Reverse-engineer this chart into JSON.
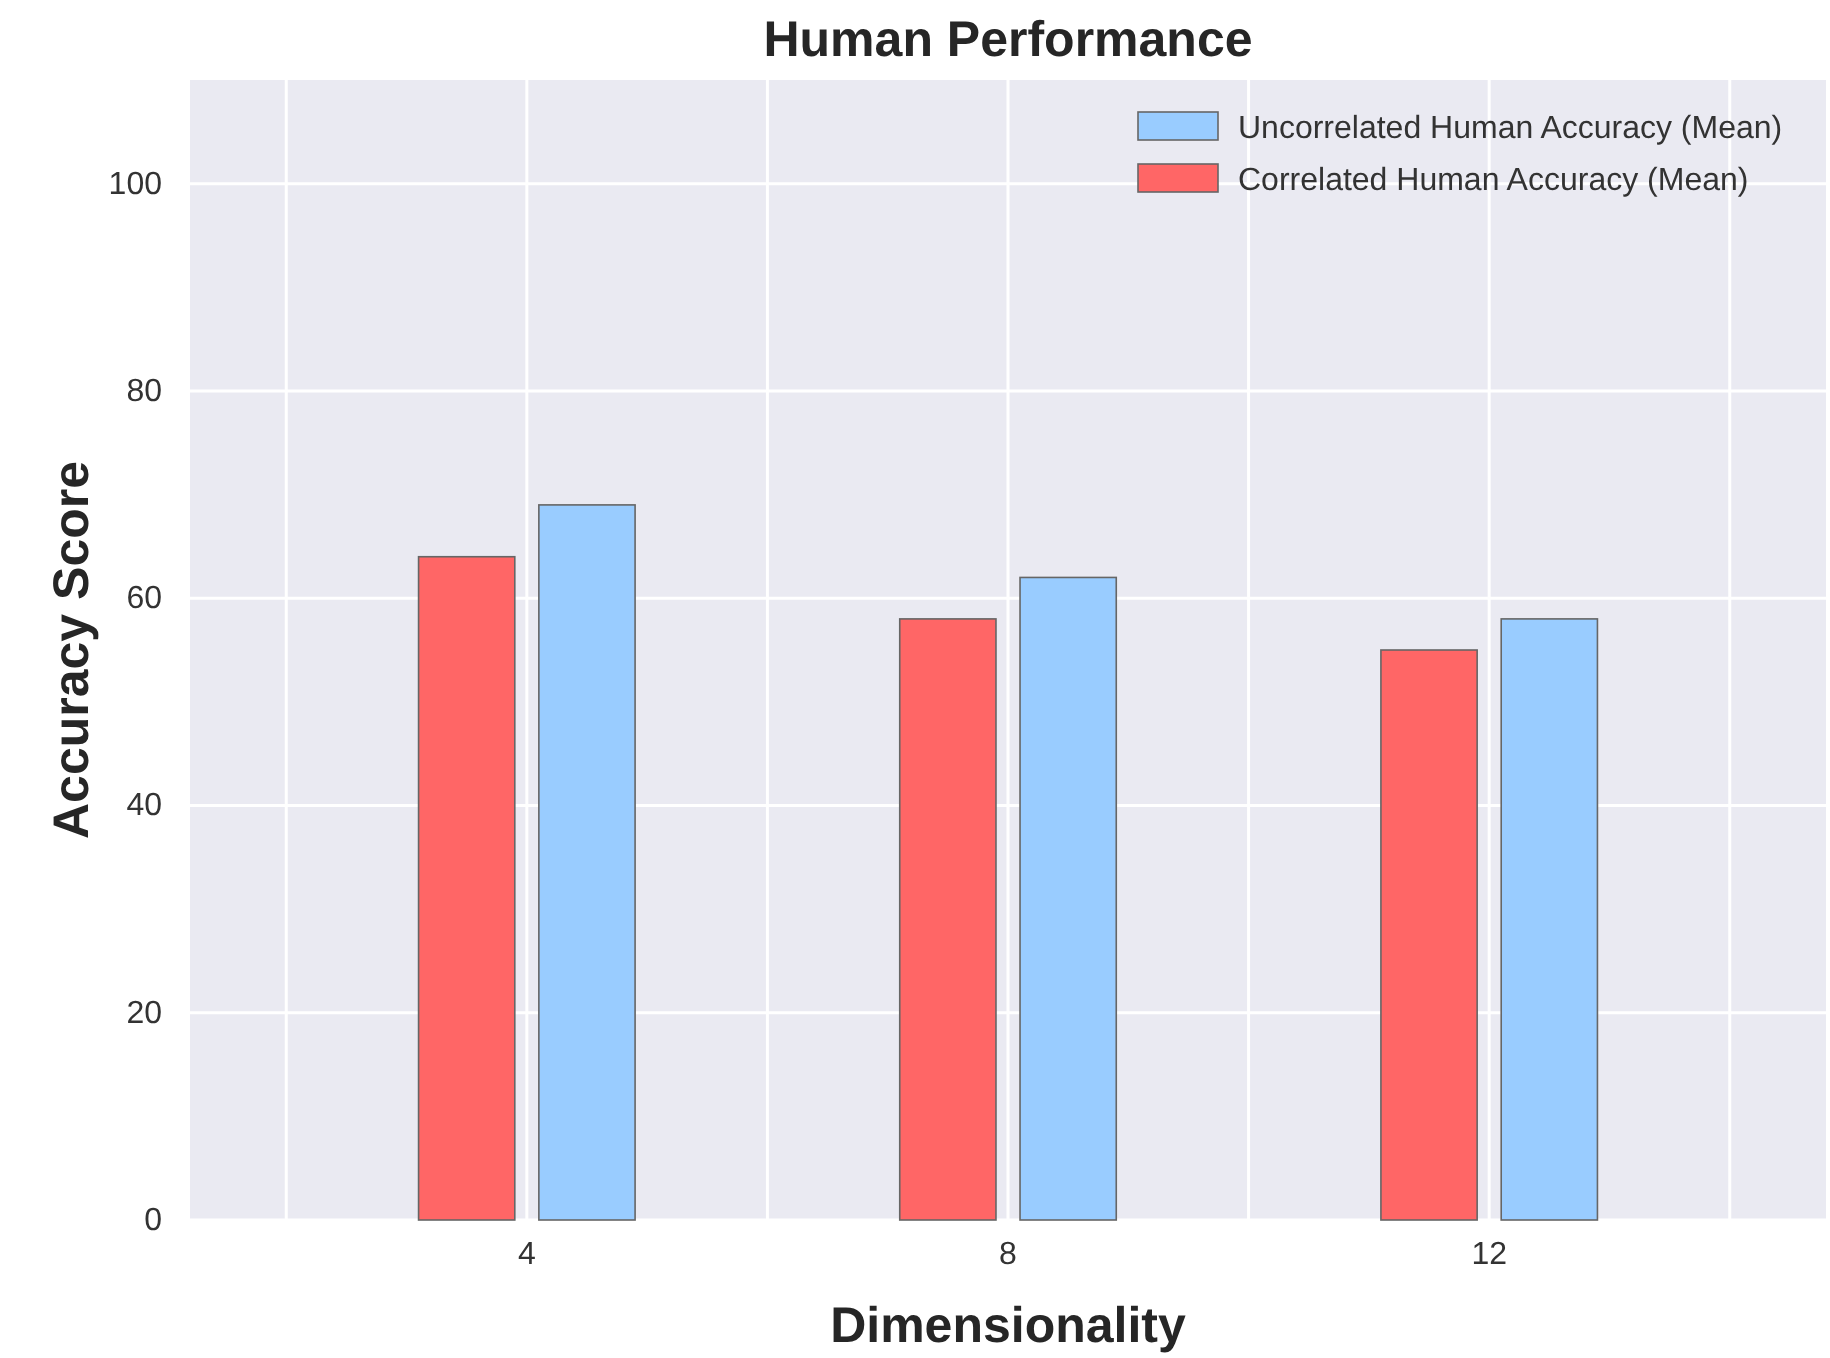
{
  "chart_data": {
    "type": "bar",
    "title": "Human Performance",
    "xlabel": "Dimensionality",
    "ylabel": "Accuracy Score",
    "x": [
      4,
      8,
      12
    ],
    "series": [
      {
        "name": "Correlated Human Accuracy (Mean)",
        "color": "#ff6666",
        "values": [
          64,
          58,
          55
        ]
      },
      {
        "name": "Uncorrelated Human Accuracy (Mean)",
        "color": "#99ccff",
        "values": [
          69,
          62,
          58
        ]
      }
    ],
    "xlim": [
      1.2,
      14.8
    ],
    "xticks": [
      {
        "value": 2,
        "label": null
      },
      4,
      {
        "value": 6,
        "label": null
      },
      8,
      {
        "value": 10,
        "label": null
      },
      12,
      {
        "value": 14,
        "label": null
      }
    ],
    "ylim": [
      0,
      110
    ],
    "yticks": [
      0,
      20,
      40,
      60,
      80,
      100
    ],
    "grid": true,
    "legend": "top right"
  }
}
